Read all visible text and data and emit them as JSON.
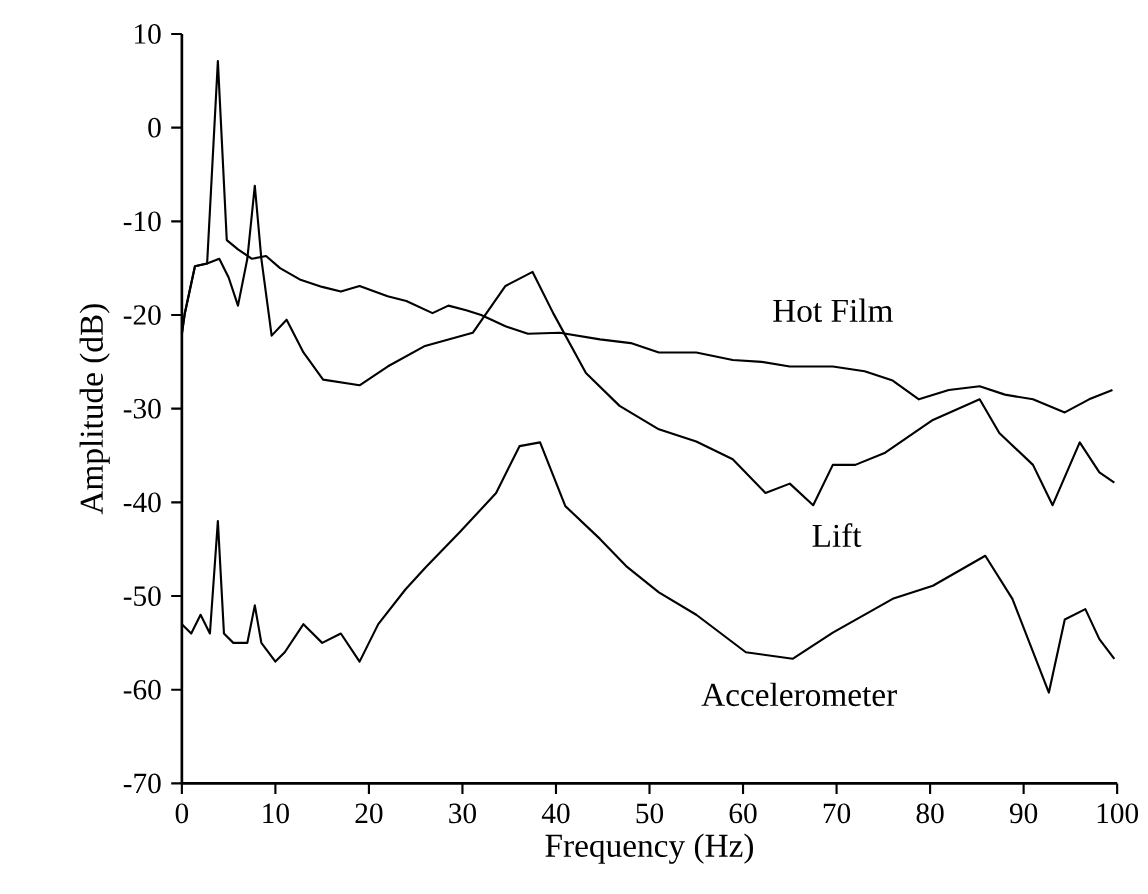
{
  "chart_data": {
    "type": "line",
    "xlabel": "Frequency (Hz)",
    "ylabel": "Amplitude (dB)",
    "xlim": [
      0,
      100
    ],
    "ylim": [
      -70,
      10
    ],
    "xticks": [
      0,
      10,
      20,
      30,
      40,
      50,
      60,
      70,
      80,
      90,
      100
    ],
    "yticks": [
      -70,
      -60,
      -50,
      -40,
      -30,
      -20,
      -10,
      0,
      10
    ],
    "series": [
      {
        "name": "Hot Film",
        "color": "#000000",
        "x": [
          0,
          0.3,
          1.4,
          2.7,
          3.85,
          4.8,
          6,
          7.5,
          9,
          10.5,
          12.6,
          15,
          17,
          19,
          22,
          24,
          26.8,
          28.5,
          30.4,
          32,
          34.6,
          37,
          40.4,
          44.7,
          48,
          51,
          55,
          58.9,
          62,
          65,
          69.6,
          73,
          76,
          78.8,
          82,
          85.3,
          88,
          91,
          94.4,
          97,
          99.5
        ],
        "values": [
          -22,
          -19.9,
          -14.8,
          -14.5,
          7.1,
          -12,
          -13,
          -14,
          -13.7,
          -15,
          -16.2,
          -17,
          -17.5,
          -16.9,
          -18,
          -18.5,
          -19.8,
          -19,
          -19.5,
          -20,
          -21.2,
          -22,
          -21.9,
          -22.6,
          -23,
          -24,
          -24,
          -24.8,
          -25,
          -25.5,
          -25.5,
          -26,
          -27,
          -29,
          -28,
          -27.6,
          -28.5,
          -29,
          -30.4,
          -29,
          -28
        ]
      },
      {
        "name": "Lift",
        "color": "#000000",
        "x": [
          0,
          0.3,
          1.4,
          2.7,
          4,
          5,
          6,
          7,
          7.8,
          8.5,
          9.6,
          11.2,
          13,
          15.1,
          19,
          22,
          26,
          31.1,
          34.6,
          37.5,
          39.7,
          43.2,
          46.8,
          51,
          55,
          58.9,
          62.4,
          65,
          67.5,
          69.6,
          72,
          75.2,
          80.3,
          85.3,
          87.4,
          91,
          93.1,
          96,
          98.1,
          99.7
        ],
        "values": [
          -22,
          -19.9,
          -14.8,
          -14.5,
          -14,
          -16,
          -19,
          -14,
          -6.2,
          -14,
          -22.2,
          -20.5,
          -24,
          -26.9,
          -27.5,
          -25.5,
          -23.3,
          -21.9,
          -16.9,
          -15.4,
          -19.8,
          -26.2,
          -29.7,
          -32.2,
          -33.5,
          -35.4,
          -39,
          -38,
          -40.3,
          -36,
          -36,
          -34.7,
          -31.2,
          -29,
          -32.6,
          -36,
          -40.3,
          -33.6,
          -36.8,
          -37.9
        ]
      },
      {
        "name": "Accelerometer",
        "color": "#000000",
        "x": [
          0,
          1,
          2,
          3,
          3.85,
          4.5,
          5.5,
          7,
          7.8,
          8.5,
          10,
          11,
          13,
          15,
          17,
          19,
          21,
          23.9,
          26,
          29.7,
          33.6,
          36.1,
          38.3,
          41,
          44.7,
          47.5,
          51,
          55,
          60.3,
          65.3,
          69.6,
          76,
          80.3,
          85.9,
          88.8,
          92.7,
          94.4,
          96.6,
          98.1,
          99.7
        ],
        "values": [
          -53,
          -54,
          -52,
          -54,
          -42,
          -54,
          -55,
          -55,
          -51,
          -55,
          -57,
          -56,
          -53,
          -55,
          -54,
          -57,
          -53,
          -49.3,
          -47,
          -43.2,
          -39,
          -34,
          -33.6,
          -40.4,
          -43.9,
          -46.8,
          -49.6,
          -52,
          -56,
          -56.7,
          -53.9,
          -50.3,
          -48.9,
          -45.7,
          -50.3,
          -60.3,
          -52.5,
          -51.4,
          -54.6,
          -56.7
        ]
      }
    ]
  }
}
